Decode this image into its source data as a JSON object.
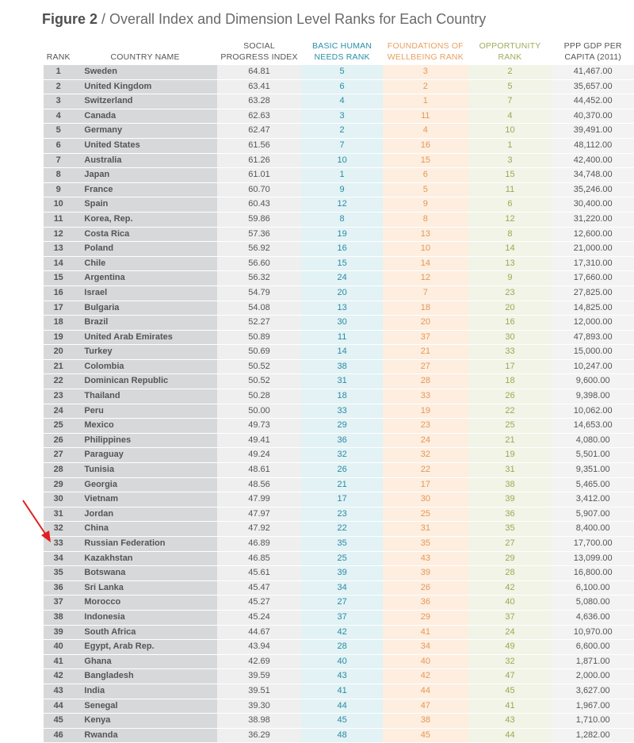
{
  "title": {
    "figure": "Figure 2",
    "separator": " / ",
    "text": "Overall Index and Dimension Level Ranks for Each Country"
  },
  "columns": {
    "rank": [
      "RANK"
    ],
    "name": [
      "COUNTRY NAME"
    ],
    "spi": [
      "SOCIAL",
      "PROGRESS INDEX"
    ],
    "bhn": [
      "BASIC HUMAN",
      "NEEDS RANK"
    ],
    "fow": [
      "FOUNDATIONS OF",
      "WELLBEING RANK"
    ],
    "opp": [
      "OPPORTUNITY",
      "RANK"
    ],
    "gdp": [
      "PPP GDP PER",
      "CAPITA (2011)"
    ]
  },
  "rows": [
    [
      "1",
      "Sweden",
      "64.81",
      "5",
      "3",
      "2",
      "41,467.00"
    ],
    [
      "2",
      "United Kingdom",
      "63.41",
      "6",
      "2",
      "5",
      "35,657.00"
    ],
    [
      "3",
      "Switzerland",
      "63.28",
      "4",
      "1",
      "7",
      "44,452.00"
    ],
    [
      "4",
      "Canada",
      "62.63",
      "3",
      "11",
      "4",
      "40,370.00"
    ],
    [
      "5",
      "Germany",
      "62.47",
      "2",
      "4",
      "10",
      "39,491.00"
    ],
    [
      "6",
      "United States",
      "61.56",
      "7",
      "16",
      "1",
      "48,112.00"
    ],
    [
      "7",
      "Australia",
      "61.26",
      "10",
      "15",
      "3",
      "42,400.00"
    ],
    [
      "8",
      "Japan",
      "61.01",
      "1",
      "6",
      "15",
      "34,748.00"
    ],
    [
      "9",
      "France",
      "60.70",
      "9",
      "5",
      "11",
      "35,246.00"
    ],
    [
      "10",
      "Spain",
      "60.43",
      "12",
      "9",
      "6",
      "30,400.00"
    ],
    [
      "11",
      "Korea, Rep.",
      "59.86",
      "8",
      "8",
      "12",
      "31,220.00"
    ],
    [
      "12",
      "Costa Rica",
      "57.36",
      "19",
      "13",
      "8",
      "12,600.00"
    ],
    [
      "13",
      "Poland",
      "56.92",
      "16",
      "10",
      "14",
      "21,000.00"
    ],
    [
      "14",
      "Chile",
      "56.60",
      "15",
      "14",
      "13",
      "17,310.00"
    ],
    [
      "15",
      "Argentina",
      "56.32",
      "24",
      "12",
      "9",
      "17,660.00"
    ],
    [
      "16",
      "Israel",
      "54.79",
      "20",
      "7",
      "23",
      "27,825.00"
    ],
    [
      "17",
      "Bulgaria",
      "54.08",
      "13",
      "18",
      "20",
      "14,825.00"
    ],
    [
      "18",
      "Brazil",
      "52.27",
      "30",
      "20",
      "16",
      "12,000.00"
    ],
    [
      "19",
      "United Arab Emirates",
      "50.89",
      "11",
      "37",
      "30",
      "47,893.00"
    ],
    [
      "20",
      "Turkey",
      "50.69",
      "14",
      "21",
      "33",
      "15,000.00"
    ],
    [
      "21",
      "Colombia",
      "50.52",
      "38",
      "27",
      "17",
      "10,247.00"
    ],
    [
      "22",
      "Dominican Republic",
      "50.52",
      "31",
      "28",
      "18",
      "9,600.00"
    ],
    [
      "23",
      "Thailand",
      "50.28",
      "18",
      "33",
      "26",
      "9,398.00"
    ],
    [
      "24",
      "Peru",
      "50.00",
      "33",
      "19",
      "22",
      "10,062.00"
    ],
    [
      "25",
      "Mexico",
      "49.73",
      "29",
      "23",
      "25",
      "14,653.00"
    ],
    [
      "26",
      "Philippines",
      "49.41",
      "36",
      "24",
      "21",
      "4,080.00"
    ],
    [
      "27",
      "Paraguay",
      "49.24",
      "32",
      "32",
      "19",
      "5,501.00"
    ],
    [
      "28",
      "Tunisia",
      "48.61",
      "26",
      "22",
      "31",
      "9,351.00"
    ],
    [
      "29",
      "Georgia",
      "48.56",
      "21",
      "17",
      "38",
      "5,465.00"
    ],
    [
      "30",
      "Vietnam",
      "47.99",
      "17",
      "30",
      "39",
      "3,412.00"
    ],
    [
      "31",
      "Jordan",
      "47.97",
      "23",
      "25",
      "36",
      "5,907.00"
    ],
    [
      "32",
      "China",
      "47.92",
      "22",
      "31",
      "35",
      "8,400.00"
    ],
    [
      "33",
      "Russian Federation",
      "46.89",
      "35",
      "35",
      "27",
      "17,700.00"
    ],
    [
      "34",
      "Kazakhstan",
      "46.85",
      "25",
      "43",
      "29",
      "13,099.00"
    ],
    [
      "35",
      "Botswana",
      "45.61",
      "39",
      "39",
      "28",
      "16,800.00"
    ],
    [
      "36",
      "Sri Lanka",
      "45.47",
      "34",
      "26",
      "42",
      "6,100.00"
    ],
    [
      "37",
      "Morocco",
      "45.27",
      "27",
      "36",
      "40",
      "5,080.00"
    ],
    [
      "38",
      "Indonesia",
      "45.24",
      "37",
      "29",
      "37",
      "4,636.00"
    ],
    [
      "39",
      "South Africa",
      "44.67",
      "42",
      "41",
      "24",
      "10,970.00"
    ],
    [
      "40",
      "Egypt, Arab Rep.",
      "43.94",
      "28",
      "34",
      "49",
      "6,600.00"
    ],
    [
      "41",
      "Ghana",
      "42.69",
      "40",
      "40",
      "32",
      "1,871.00"
    ],
    [
      "42",
      "Bangladesh",
      "39.59",
      "43",
      "42",
      "47",
      "2,000.00"
    ],
    [
      "43",
      "India",
      "39.51",
      "41",
      "44",
      "45",
      "3,627.00"
    ],
    [
      "44",
      "Senegal",
      "39.30",
      "44",
      "47",
      "41",
      "1,967.00"
    ],
    [
      "45",
      "Kenya",
      "38.98",
      "45",
      "38",
      "43",
      "1,710.00"
    ],
    [
      "46",
      "Rwanda",
      "36.29",
      "48",
      "45",
      "44",
      "1,282.00"
    ]
  ],
  "colors": {
    "arrow": "#e02020",
    "bhn": "#2b8aa3",
    "fow": "#e59756",
    "opp": "#9aa955"
  },
  "annotation": {
    "icon": "red-arrow-icon",
    "points_to_rank": "33"
  }
}
